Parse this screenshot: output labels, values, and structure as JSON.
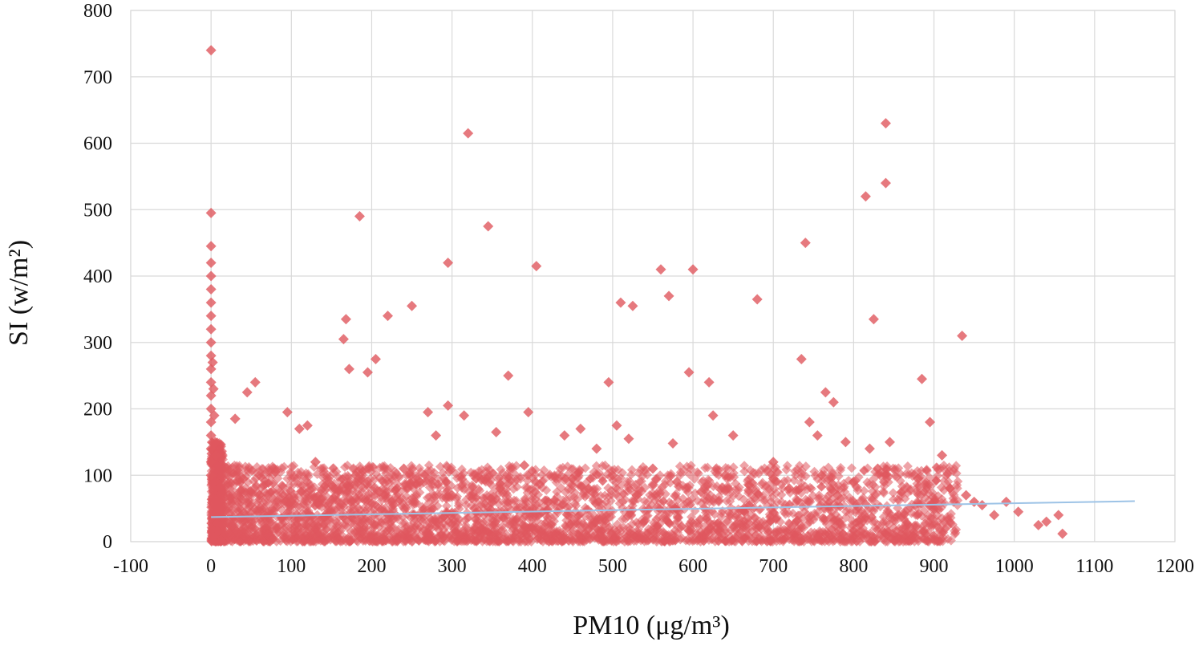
{
  "chart_data": {
    "type": "scatter",
    "title": "",
    "xlabel": "PM10 (μg/m³)",
    "ylabel": "SI (w/m²)",
    "xlim": [
      -100,
      1200
    ],
    "ylim": [
      0,
      800
    ],
    "xticks": [
      -100,
      0,
      100,
      200,
      300,
      400,
      500,
      600,
      700,
      800,
      900,
      1000,
      1100,
      1200
    ],
    "yticks": [
      0,
      100,
      200,
      300,
      400,
      500,
      600,
      700,
      800
    ],
    "xtick_labels": [
      "-100",
      "0",
      "100",
      "200",
      "300",
      "400",
      "500",
      "600",
      "700",
      "800",
      "900",
      "1000",
      "1100",
      "1200"
    ],
    "ytick_labels": [
      "0",
      "100",
      "200",
      "300",
      "400",
      "500",
      "600",
      "700",
      "800"
    ],
    "grid": true,
    "legend": "none",
    "marker": "diamond",
    "colors": {
      "points": "#e0585e",
      "trendline": "#9dc3e6",
      "grid": "#d9d9d9"
    },
    "trendline": {
      "x": [
        0,
        1150
      ],
      "y": [
        37,
        61
      ]
    },
    "series": [
      {
        "values": [
          [
            0,
            740
          ],
          [
            0,
            495
          ],
          [
            0,
            445
          ],
          [
            0,
            420
          ],
          [
            0,
            400
          ],
          [
            0,
            380
          ],
          [
            0,
            360
          ],
          [
            0,
            340
          ],
          [
            0,
            320
          ],
          [
            0,
            300
          ],
          [
            0,
            280
          ],
          [
            0,
            260
          ],
          [
            0,
            240
          ],
          [
            0,
            220
          ],
          [
            0,
            200
          ],
          [
            0,
            180
          ],
          [
            0,
            160
          ],
          [
            0,
            140
          ],
          [
            0,
            120
          ],
          [
            0,
            100
          ],
          [
            2,
            270
          ],
          [
            3,
            230
          ],
          [
            4,
            190
          ],
          [
            5,
            150
          ],
          [
            6,
            130
          ],
          [
            30,
            185
          ],
          [
            45,
            225
          ],
          [
            55,
            240
          ],
          [
            95,
            195
          ],
          [
            110,
            170
          ],
          [
            120,
            175
          ],
          [
            165,
            305
          ],
          [
            168,
            335
          ],
          [
            172,
            260
          ],
          [
            185,
            490
          ],
          [
            195,
            255
          ],
          [
            205,
            275
          ],
          [
            220,
            340
          ],
          [
            250,
            355
          ],
          [
            270,
            195
          ],
          [
            280,
            160
          ],
          [
            295,
            205
          ],
          [
            295,
            420
          ],
          [
            315,
            190
          ],
          [
            320,
            615
          ],
          [
            345,
            475
          ],
          [
            355,
            165
          ],
          [
            370,
            250
          ],
          [
            395,
            195
          ],
          [
            405,
            415
          ],
          [
            440,
            160
          ],
          [
            460,
            170
          ],
          [
            480,
            140
          ],
          [
            495,
            240
          ],
          [
            505,
            175
          ],
          [
            510,
            360
          ],
          [
            520,
            155
          ],
          [
            525,
            355
          ],
          [
            560,
            410
          ],
          [
            570,
            370
          ],
          [
            575,
            148
          ],
          [
            595,
            255
          ],
          [
            600,
            410
          ],
          [
            620,
            240
          ],
          [
            625,
            190
          ],
          [
            650,
            160
          ],
          [
            680,
            365
          ],
          [
            700,
            120
          ],
          [
            735,
            275
          ],
          [
            740,
            450
          ],
          [
            745,
            180
          ],
          [
            755,
            160
          ],
          [
            765,
            225
          ],
          [
            775,
            210
          ],
          [
            790,
            150
          ],
          [
            815,
            520
          ],
          [
            820,
            140
          ],
          [
            825,
            335
          ],
          [
            840,
            540
          ],
          [
            840,
            630
          ],
          [
            845,
            150
          ],
          [
            885,
            245
          ],
          [
            895,
            180
          ],
          [
            910,
            130
          ],
          [
            935,
            310
          ],
          [
            950,
            60
          ],
          [
            960,
            55
          ],
          [
            975,
            40
          ],
          [
            990,
            60
          ],
          [
            1005,
            45
          ],
          [
            1030,
            25
          ],
          [
            1040,
            30
          ],
          [
            1055,
            40
          ],
          [
            1060,
            12
          ],
          [
            20,
            110
          ],
          [
            40,
            95
          ],
          [
            60,
            70
          ],
          [
            80,
            105
          ],
          [
            100,
            60
          ],
          [
            130,
            120
          ],
          [
            150,
            85
          ],
          [
            180,
            100
          ],
          [
            210,
            75
          ],
          [
            240,
            110
          ],
          [
            260,
            90
          ],
          [
            300,
            70
          ],
          [
            330,
            95
          ],
          [
            360,
            80
          ],
          [
            390,
            115
          ],
          [
            420,
            60
          ],
          [
            450,
            95
          ],
          [
            470,
            80
          ],
          [
            500,
            100
          ],
          [
            530,
            70
          ],
          [
            550,
            110
          ],
          [
            580,
            90
          ],
          [
            610,
            75
          ],
          [
            640,
            100
          ],
          [
            670,
            85
          ],
          [
            700,
            95
          ],
          [
            720,
            80
          ],
          [
            760,
            100
          ],
          [
            780,
            70
          ],
          [
            800,
            90
          ],
          [
            830,
            110
          ],
          [
            860,
            75
          ],
          [
            880,
            95
          ],
          [
            900,
            60
          ],
          [
            920,
            80
          ],
          [
            940,
            70
          ]
        ]
      }
    ]
  }
}
